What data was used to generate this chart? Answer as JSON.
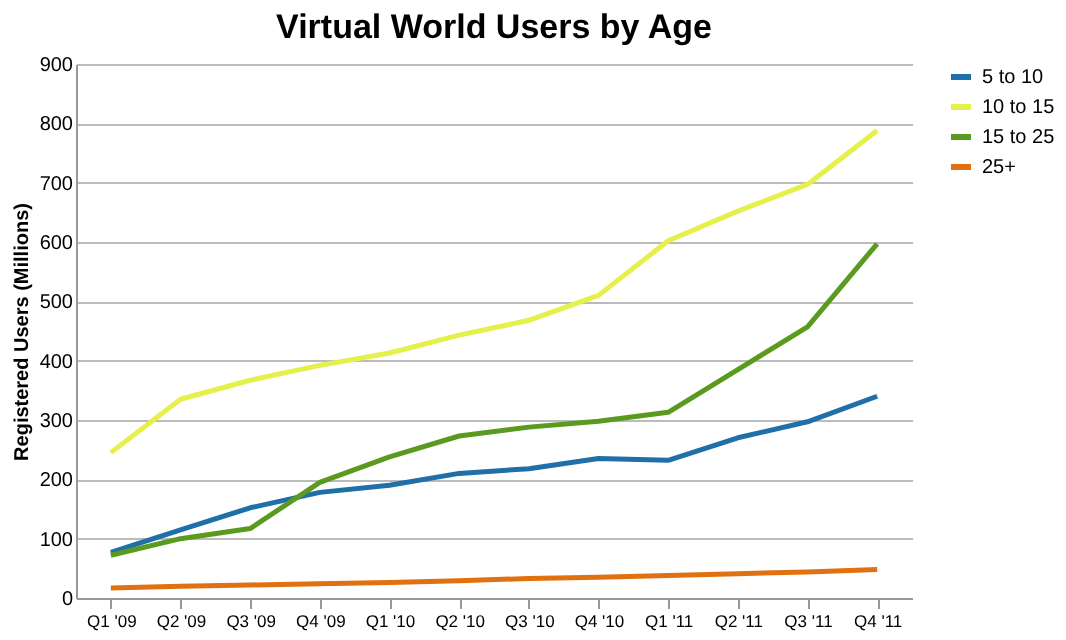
{
  "chart_data": {
    "type": "line",
    "title": "Virtual World Users by Age",
    "ylabel": "Registered Users (Millions)",
    "categories": [
      "Q1 '09",
      "Q2 '09",
      "Q3 '09",
      "Q4 '09",
      "Q1 '10",
      "Q2 '10",
      "Q3 '10",
      "Q4 '10",
      "Q1 '11",
      "Q2 '11",
      "Q3 '11",
      "Q4 '11"
    ],
    "series": [
      {
        "name": "5 to 10",
        "color": "#1f6fa8",
        "values": [
          77,
          115,
          152,
          178,
          190,
          210,
          218,
          235,
          232,
          270,
          297,
          340
        ]
      },
      {
        "name": "10 to 15",
        "color": "#e6f04a",
        "values": [
          245,
          335,
          367,
          392,
          413,
          443,
          468,
          510,
          602,
          652,
          697,
          788
        ]
      },
      {
        "name": "15 to 25",
        "color": "#5a9a1e",
        "values": [
          72,
          100,
          117,
          195,
          238,
          273,
          288,
          298,
          313,
          385,
          457,
          597
        ]
      },
      {
        "name": "25+",
        "color": "#e07010",
        "values": [
          17,
          20,
          22,
          24,
          26,
          29,
          33,
          35,
          38,
          41,
          44,
          48
        ]
      }
    ],
    "ylim": [
      0,
      900
    ],
    "yticks": [
      0,
      100,
      200,
      300,
      400,
      500,
      600,
      700,
      800,
      900
    ],
    "grid": "y",
    "legend": "right",
    "marker": "none",
    "line_style": "solid"
  }
}
